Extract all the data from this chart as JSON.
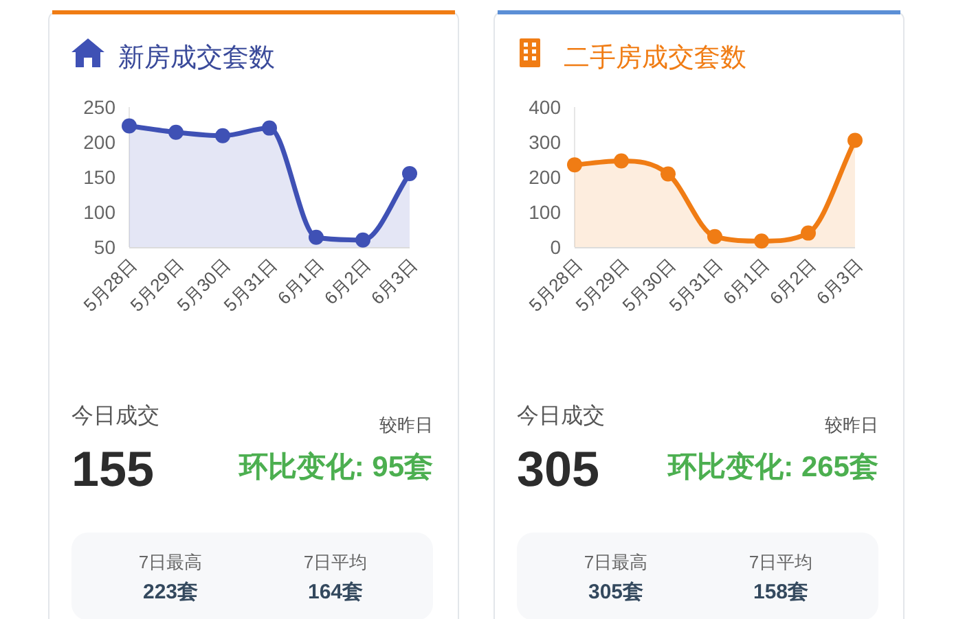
{
  "chart_data": [
    {
      "type": "area",
      "title": "新房成交套数",
      "categories": [
        "5月28日",
        "5月29日",
        "5月30日",
        "5月31日",
        "6月1日",
        "6月2日",
        "6月3日"
      ],
      "values": [
        223,
        214,
        209,
        220,
        64,
        60,
        155
      ],
      "color": "#3f51b5",
      "ylim": [
        50,
        250
      ],
      "yticks": [
        50,
        100,
        150,
        200,
        250
      ],
      "marker": "circle",
      "grid": false,
      "annotations": [
        "今日成交",
        "155",
        "较昨日",
        "环比变化: 95套",
        "7日最高",
        "223套",
        "7日平均",
        "164套"
      ]
    },
    {
      "type": "area",
      "title": "二手房成交套数",
      "categories": [
        "5月28日",
        "5月29日",
        "5月30日",
        "5月31日",
        "6月1日",
        "6月2日",
        "6月3日"
      ],
      "values": [
        235,
        246,
        209,
        30,
        17,
        40,
        305
      ],
      "color": "#f07c14",
      "ylim": [
        0,
        400
      ],
      "yticks": [
        0,
        100,
        200,
        300,
        400
      ],
      "marker": "circle",
      "grid": false,
      "annotations": [
        "今日成交",
        "305",
        "较昨日",
        "环比变化: 265套",
        "7日最高",
        "305套",
        "7日平均",
        "158套"
      ]
    }
  ]
}
